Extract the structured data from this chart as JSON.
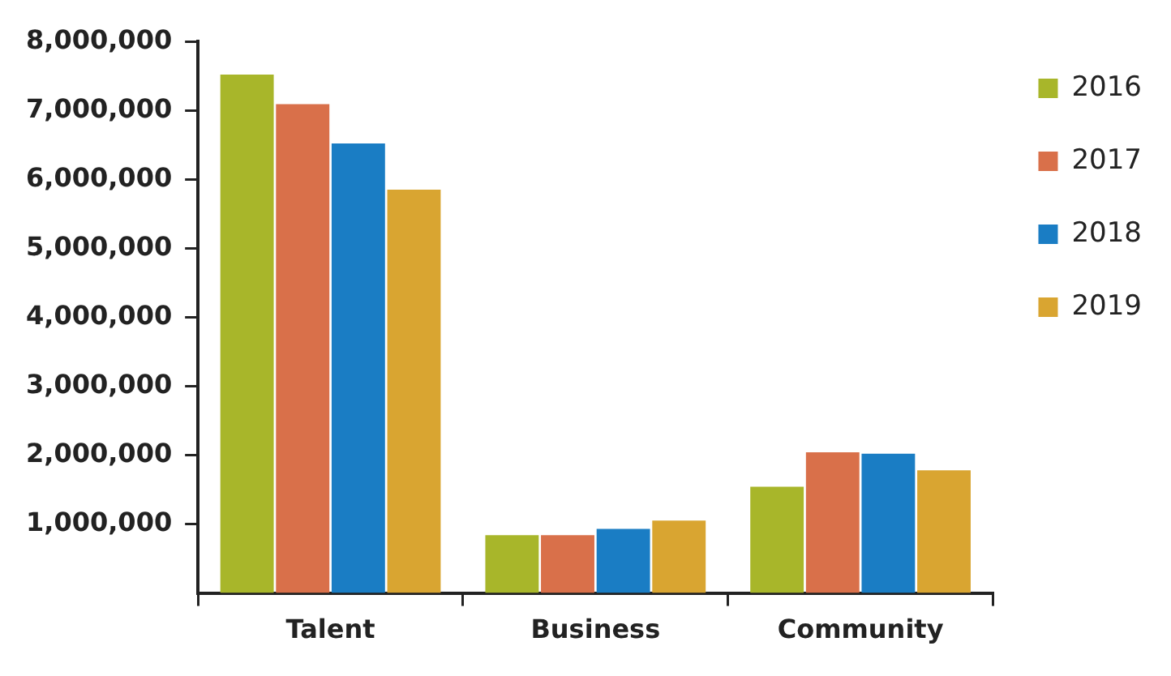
{
  "chart_data": {
    "type": "bar",
    "categories": [
      "Talent",
      "Business",
      "Community"
    ],
    "series": [
      {
        "name": "2016",
        "color": "#a8b62a",
        "values": [
          7520000,
          840000,
          1540000
        ]
      },
      {
        "name": "2017",
        "color": "#d9704a",
        "values": [
          7090000,
          840000,
          2040000
        ]
      },
      {
        "name": "2018",
        "color": "#1a7dc4",
        "values": [
          6520000,
          930000,
          2020000
        ]
      },
      {
        "name": "2019",
        "color": "#d9a531",
        "values": [
          5850000,
          1050000,
          1780000
        ]
      }
    ],
    "ylim": [
      0,
      8000000
    ],
    "yticks": [
      {
        "value": 1000000,
        "label": "1,000,000"
      },
      {
        "value": 2000000,
        "label": "2,000,000"
      },
      {
        "value": 3000000,
        "label": "3,000,000"
      },
      {
        "value": 4000000,
        "label": "4,000,000"
      },
      {
        "value": 5000000,
        "label": "5,000,000"
      },
      {
        "value": 6000000,
        "label": "6,000,000"
      },
      {
        "value": 7000000,
        "label": "7,000,000"
      },
      {
        "value": 8000000,
        "label": "8,000,000"
      }
    ],
    "grid": false,
    "legend": "right"
  }
}
